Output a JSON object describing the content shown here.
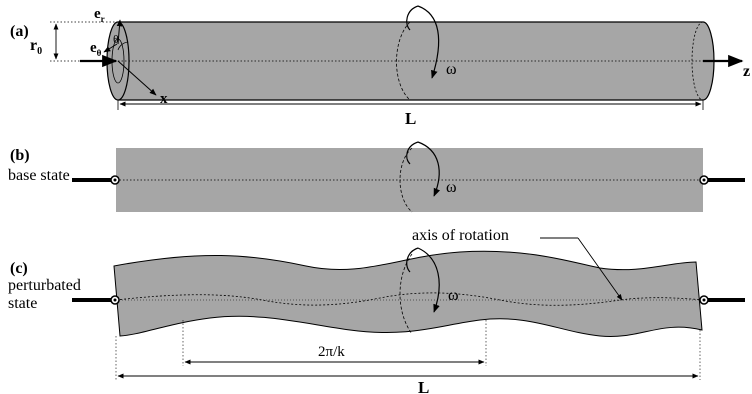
{
  "panels": {
    "a": {
      "label": "(a)",
      "r0": "r",
      "r0_sub": "0",
      "e_r": "e",
      "e_r_sub": "r",
      "e_theta": "e",
      "e_theta_sub": "θ",
      "theta": "θ",
      "omega": "ω",
      "x_axis": "x",
      "z_axis": "z",
      "length": "L"
    },
    "b": {
      "label": "(b)",
      "caption": "base state",
      "omega": "ω"
    },
    "c": {
      "label": "(c)",
      "caption_line1": "perturbated",
      "caption_line2": "state",
      "omega": "ω",
      "axis_label": "axis of rotation",
      "wavelength": "2π/k",
      "length": "L"
    }
  },
  "colors": {
    "cylinder_fill": "#a6a6a6",
    "stroke": "#000000"
  }
}
